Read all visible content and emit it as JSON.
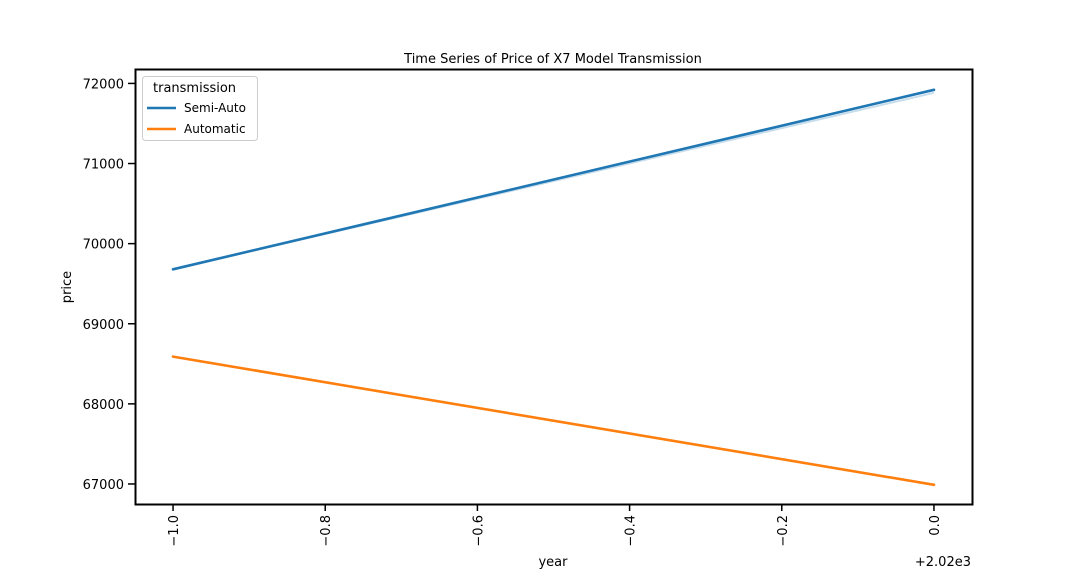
{
  "chart_data": {
    "type": "line",
    "title": "Time Series of Price of X7 Model Transmission",
    "xlabel": "year",
    "ylabel": "price",
    "x_offset_label": "+2.02e3",
    "x_ticks": [
      "−1.0",
      "−0.8",
      "−0.6",
      "−0.4",
      "−0.2",
      "0.0"
    ],
    "y_ticks": [
      "67000",
      "68000",
      "69000",
      "70000",
      "71000",
      "72000"
    ],
    "xlim": [
      2018.95,
      2020.05
    ],
    "ylim": [
      66750,
      72180
    ],
    "x": [
      2019,
      2020
    ],
    "legend": {
      "title": "transmission",
      "position": "top-left"
    },
    "series": [
      {
        "name": "Semi-Auto",
        "color": "#1f77b4",
        "values": [
          69680,
          71920
        ]
      },
      {
        "name": "Automatic",
        "color": "#ff7f0e",
        "values": [
          68590,
          66990
        ]
      }
    ]
  }
}
